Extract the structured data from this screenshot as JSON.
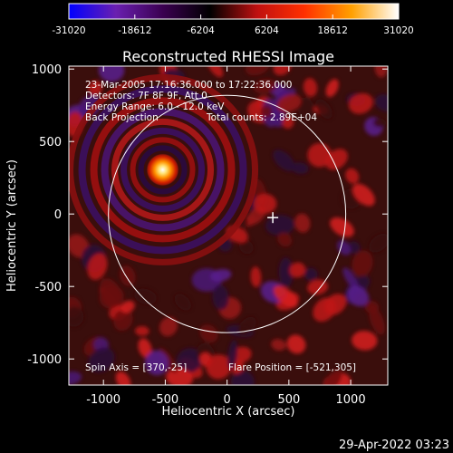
{
  "colorbar": {
    "ticks": [
      "-31020",
      "-18612",
      "-6204",
      "6204",
      "18612",
      "31020"
    ],
    "range": [
      -31020,
      31020
    ],
    "colors": [
      "#0000ff",
      "#6a1fb0",
      "#3a0050",
      "#000000",
      "#c01010",
      "#ff3000",
      "#ffa000",
      "#ffffff"
    ]
  },
  "chart_data": {
    "type": "heatmap",
    "title": "Reconstructed RHESSI Image",
    "xlabel": "Heliocentric X (arcsec)",
    "ylabel": "Heliocentric Y (arcsec)",
    "xlim": [
      -1280,
      1300
    ],
    "ylim": [
      -1180,
      1020
    ],
    "xticks": [
      -1000,
      -500,
      0,
      500,
      1000
    ],
    "yticks": [
      -1000,
      -500,
      0,
      500,
      1000
    ],
    "annotations": {
      "time": "23-Mar-2005 17:16:36.000 to 17:22:36.000",
      "detectors": "Detectors: 7F 8F 9F, Att 0",
      "energy": "Energy Range: 6.0 - 12.0 keV",
      "method": "Back Projection",
      "counts": "Total counts: 2.89E+04",
      "spin_axis": "Spin Axis = [370,-25]",
      "flare_position": "Flare Position = [-521,305]"
    },
    "source": {
      "x": -521,
      "y": 305,
      "value": 31020
    },
    "solar_disk": {
      "center": [
        0,
        0
      ],
      "radius_arcsec": 960
    },
    "spin_axis_marker": {
      "x": 370,
      "y": -25
    }
  },
  "footer": {
    "date": "29-Apr-2022 03:23"
  }
}
